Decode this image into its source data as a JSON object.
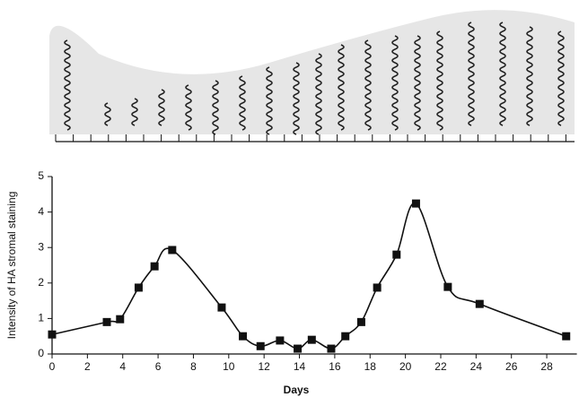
{
  "chart_data": {
    "type": "line",
    "smooth": true,
    "marker": "square",
    "x_label": "Days",
    "y_label": "Intensity of HA stromal staining",
    "x": [
      0,
      3.1,
      3.85,
      4.9,
      5.8,
      6.8,
      9.6,
      10.8,
      11.8,
      12.9,
      13.9,
      14.7,
      15.8,
      16.6,
      17.5,
      18.4,
      19.5,
      20.6,
      22.4,
      24.2,
      29.1
    ],
    "series": [
      {
        "color": "#111111",
        "values": [
          0.55,
          0.9,
          0.98,
          1.87,
          2.47,
          2.93,
          1.31,
          0.5,
          0.22,
          0.38,
          0.15,
          0.4,
          0.15,
          0.5,
          0.9,
          1.87,
          2.8,
          4.24,
          1.89,
          1.41,
          0.5
        ]
      }
    ],
    "xlim": [
      0,
      29.5
    ],
    "xticks": [
      0,
      2,
      4,
      6,
      8,
      10,
      12,
      14,
      16,
      18,
      20,
      22,
      24,
      26,
      28
    ],
    "ylim": [
      0,
      5
    ],
    "yticks": [
      0,
      1,
      2,
      3,
      4,
      5
    ]
  }
}
